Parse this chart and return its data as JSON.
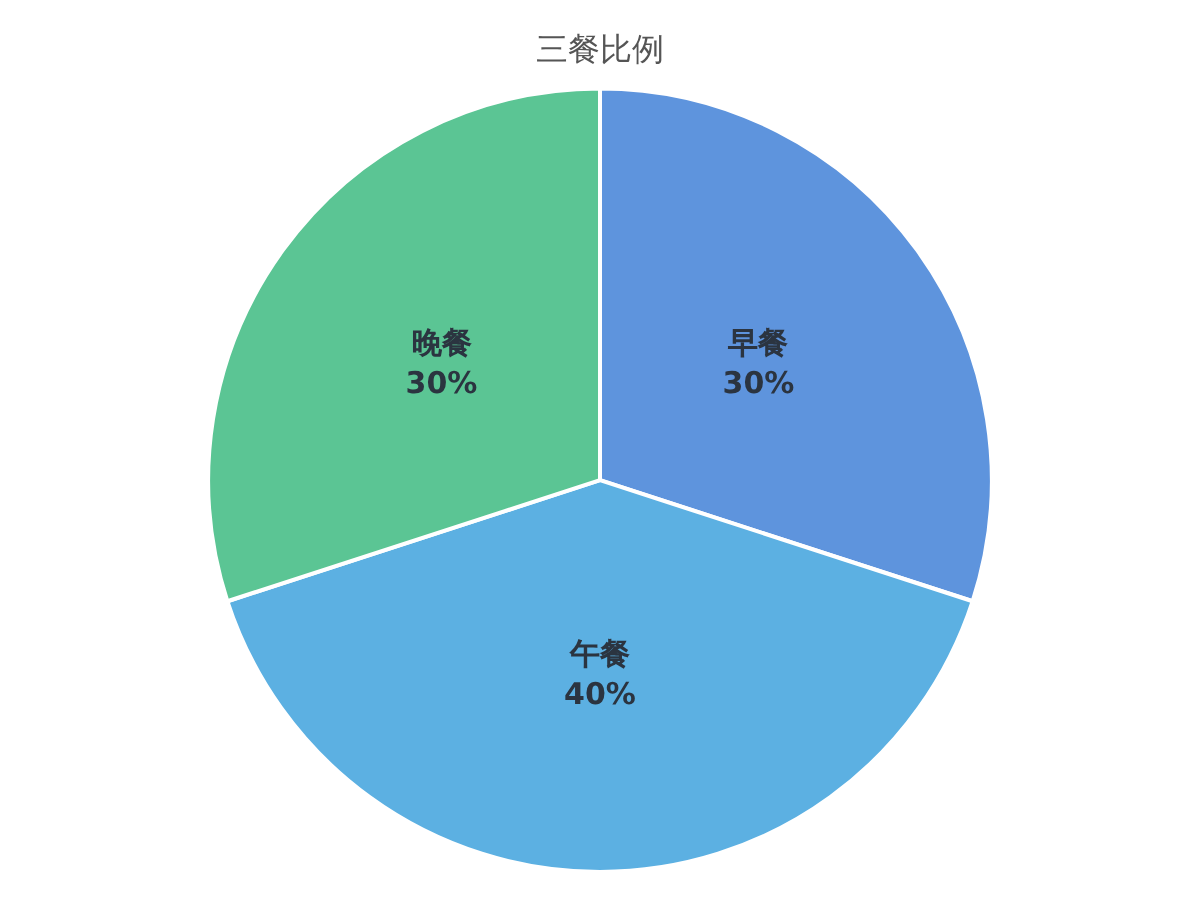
{
  "chart_data": {
    "type": "pie",
    "title": "三餐比例",
    "categories": [
      "早餐",
      "午餐",
      "晚餐"
    ],
    "values": [
      30,
      40,
      30
    ],
    "value_labels": [
      "30%",
      "40%",
      "30%"
    ],
    "colors": [
      "#5e94dd",
      "#5cb0e2",
      "#5bc594"
    ],
    "legend": false
  }
}
